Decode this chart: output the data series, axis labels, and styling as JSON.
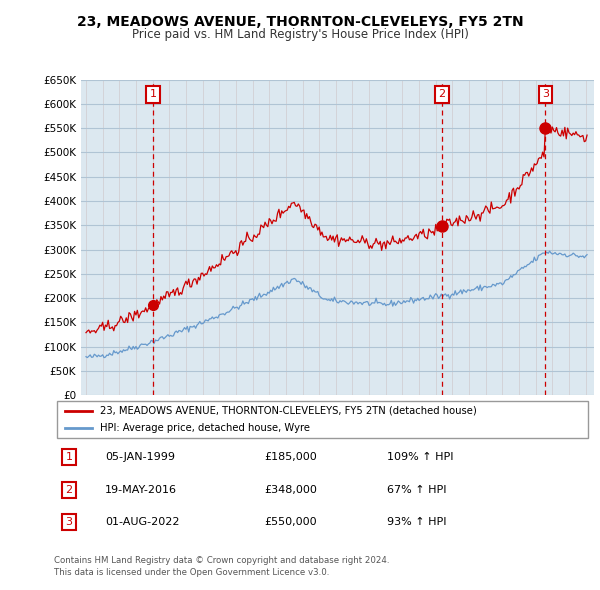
{
  "title": "23, MEADOWS AVENUE, THORNTON-CLEVELEYS, FY5 2TN",
  "subtitle": "Price paid vs. HM Land Registry's House Price Index (HPI)",
  "sale_dates_num": [
    1999.04,
    2016.38,
    2022.58
  ],
  "sale_prices": [
    185000,
    348000,
    550000
  ],
  "sale_labels": [
    "1",
    "2",
    "3"
  ],
  "legend_red": "23, MEADOWS AVENUE, THORNTON-CLEVELEYS, FY5 2TN (detached house)",
  "legend_blue": "HPI: Average price, detached house, Wyre",
  "table_rows": [
    [
      "1",
      "05-JAN-1999",
      "£185,000",
      "109% ↑ HPI"
    ],
    [
      "2",
      "19-MAY-2016",
      "£348,000",
      "67% ↑ HPI"
    ],
    [
      "3",
      "01-AUG-2022",
      "£550,000",
      "93% ↑ HPI"
    ]
  ],
  "footnote": "Contains HM Land Registry data © Crown copyright and database right 2024.\nThis data is licensed under the Open Government Licence v3.0.",
  "red_color": "#cc0000",
  "blue_color": "#6699cc",
  "marker_color": "#cc0000",
  "vline_color": "#cc0000",
  "grid_color": "#c8d4e0",
  "bg_color": "#dce8f0",
  "plot_bg": "#dce8f0",
  "ylim": [
    0,
    650000
  ],
  "xlim_start": 1994.7,
  "xlim_end": 2025.5
}
